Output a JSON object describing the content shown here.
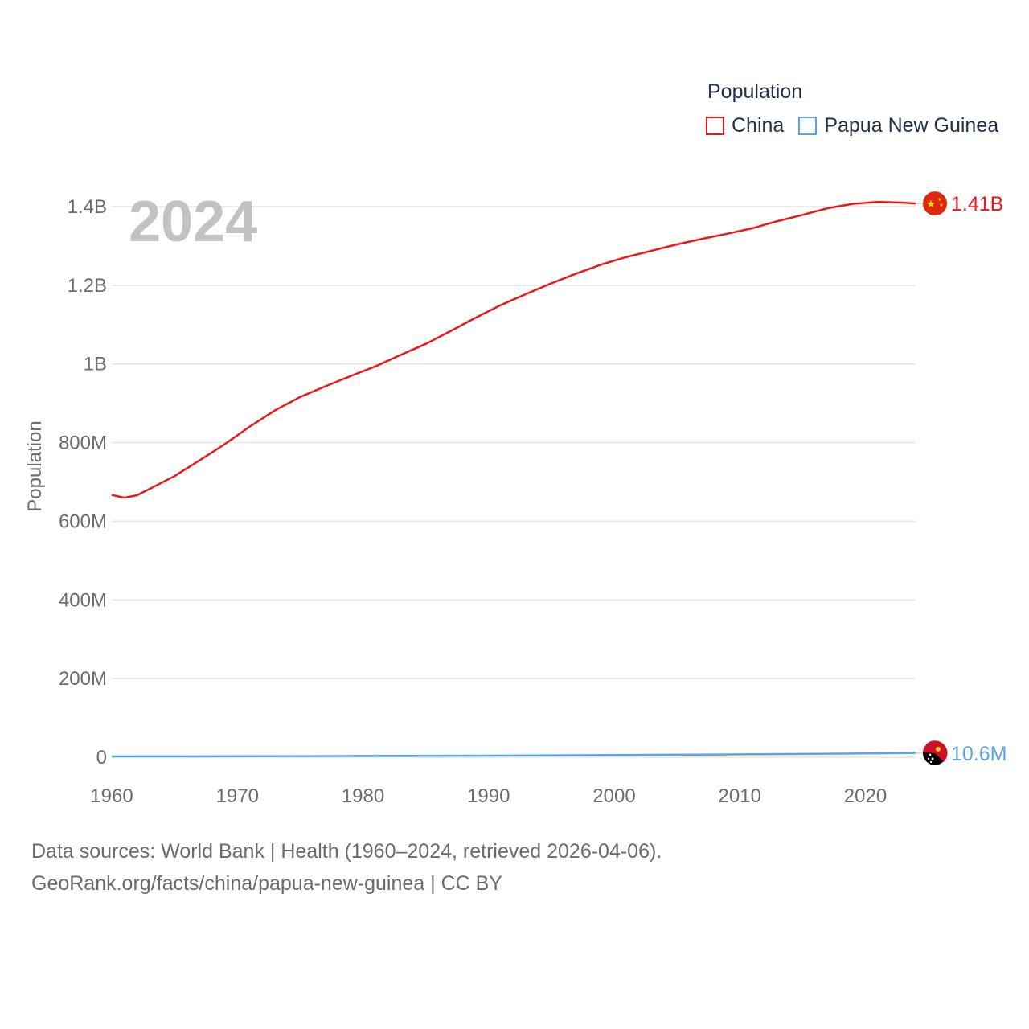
{
  "legend": {
    "title": "Population",
    "items": [
      {
        "label": "China",
        "color": "#e8191b"
      },
      {
        "label": "Papua New Guinea",
        "color": "#5da4e6"
      }
    ]
  },
  "footer": {
    "line1": "Data sources: World Bank | Health (1960–2024, retrieved 2026-04-06).",
    "line2": "GeoRank.org/facts/china/papua-new-guinea | CC BY"
  },
  "chart_data": {
    "type": "line",
    "year_label": "2024",
    "ylabel": "Population",
    "xlabel": "",
    "xlim": [
      1960,
      2024
    ],
    "ylim": [
      0,
      1400000000
    ],
    "xticks": [
      1960,
      1970,
      1980,
      1990,
      2000,
      2010,
      2020
    ],
    "yticks": [
      {
        "value": 0,
        "label": "0"
      },
      {
        "value": 200000000,
        "label": "200M"
      },
      {
        "value": 400000000,
        "label": "400M"
      },
      {
        "value": 600000000,
        "label": "600M"
      },
      {
        "value": 800000000,
        "label": "800M"
      },
      {
        "value": 1000000000,
        "label": "1B"
      },
      {
        "value": 1200000000,
        "label": "1.2B"
      },
      {
        "value": 1400000000,
        "label": "1.4B"
      }
    ],
    "grid": true,
    "legend_position": "top-right",
    "series": [
      {
        "name": "China",
        "color": "#e8191b",
        "end_label": "1.41B",
        "flag": "china-flag",
        "x": [
          1960,
          1961,
          1962,
          1963,
          1965,
          1967,
          1969,
          1971,
          1973,
          1975,
          1977,
          1979,
          1981,
          1983,
          1985,
          1987,
          1989,
          1991,
          1993,
          1995,
          1997,
          1999,
          2001,
          2003,
          2005,
          2007,
          2009,
          2011,
          2013,
          2015,
          2017,
          2019,
          2021,
          2023,
          2024
        ],
        "y": [
          667000000,
          660000000,
          666000000,
          682000000,
          715000000,
          755000000,
          796000000,
          841000000,
          882000000,
          916000000,
          943000000,
          969000000,
          994000000,
          1023000000,
          1051000000,
          1084000000,
          1118000000,
          1150000000,
          1178000000,
          1205000000,
          1230000000,
          1253000000,
          1272000000,
          1288000000,
          1304000000,
          1318000000,
          1331000000,
          1345000000,
          1363000000,
          1379000000,
          1396000000,
          1407000000,
          1412000000,
          1410000000,
          1408000000
        ]
      },
      {
        "name": "Papua New Guinea",
        "color": "#5da4e6",
        "end_label": "10.6M",
        "flag": "papua-new-guinea-flag",
        "x": [
          1960,
          1970,
          1980,
          1990,
          2000,
          2010,
          2020,
          2024
        ],
        "y": [
          1970000,
          2530000,
          3200000,
          4100000,
          5500000,
          7300000,
          9700000,
          10600000
        ]
      }
    ]
  }
}
